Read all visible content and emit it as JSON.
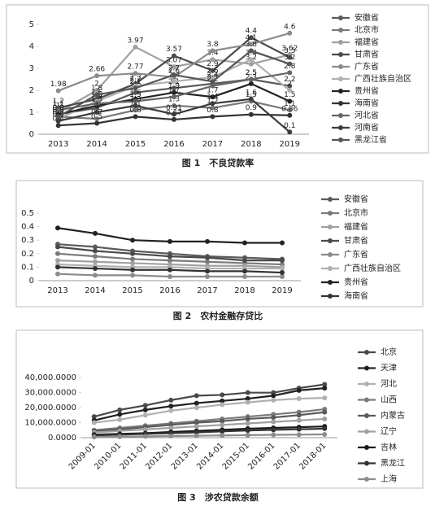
{
  "chart_data": [
    {
      "type": "line",
      "title": "图 1　不良贷款率",
      "data_labels": true,
      "categories": [
        "2013",
        "2014",
        "2015",
        "2016",
        "2017",
        "2018",
        "2019"
      ],
      "ylim": [
        0,
        5
      ],
      "yticks": [
        0,
        1,
        2,
        3,
        4,
        5
      ],
      "series": [
        {
          "name": "安徽省",
          "color": "#5a5a5a",
          "values": [
            0.9,
            1.2,
            1.9,
            2.1,
            2.3,
            2.5,
            2.2
          ]
        },
        {
          "name": "北京市",
          "color": "#7a7a7a",
          "values": [
            0.8,
            0.7,
            1.1,
            1.3,
            1.2,
            1.5,
            1.1
          ]
        },
        {
          "name": "福建省",
          "color": "#a0a0a0",
          "values": [
            1.0,
            2.0,
            3.97,
            3.07,
            3.4,
            3.2,
            3.62
          ]
        },
        {
          "name": "甘肃省",
          "color": "#4a4a4a",
          "values": [
            1.2,
            1.6,
            2.3,
            3.57,
            2.9,
            4.4,
            3.5
          ]
        },
        {
          "name": "广东省",
          "color": "#8c8c8c",
          "values": [
            1.98,
            2.66,
            2.77,
            2.6,
            3.8,
            4.1,
            4.6
          ]
        },
        {
          "name": "广西壮族自治区",
          "color": "#b0b0b0",
          "values": [
            0.7,
            1.5,
            2.2,
            2.4,
            2.6,
            3.4,
            2.0
          ]
        },
        {
          "name": "贵州省",
          "color": "#222222",
          "values": [
            0.9,
            1.3,
            1.6,
            1.9,
            1.7,
            2.3,
            1.5
          ]
        },
        {
          "name": "海南省",
          "color": "#333333",
          "values": [
            0.4,
            0.5,
            0.8,
            0.67,
            0.8,
            0.9,
            0.86
          ]
        },
        {
          "name": "河北省",
          "color": "#666666",
          "values": [
            1.1,
            1.4,
            1.5,
            1.7,
            2.2,
            2.5,
            2.8
          ]
        },
        {
          "name": "河南省",
          "color": "#3c3c3c",
          "values": [
            0.6,
            1.0,
            1.3,
            0.91,
            1.4,
            1.6,
            0.1
          ]
        },
        {
          "name": "黑龙江省",
          "color": "#555555",
          "values": [
            0.8,
            1.8,
            2.1,
            2.7,
            2.4,
            3.8,
            3.2
          ]
        }
      ]
    },
    {
      "type": "line",
      "title": "图 2　农村金融存贷比",
      "categories": [
        "2013",
        "2014",
        "2015",
        "2016",
        "2017",
        "2018",
        "2019"
      ],
      "ylim": [
        0,
        0.5
      ],
      "yticks": [
        0,
        0.1,
        0.2,
        0.3,
        0.4,
        0.5
      ],
      "series": [
        {
          "name": "安徽省",
          "color": "#5a5a5a",
          "values": [
            0.27,
            0.25,
            0.22,
            0.2,
            0.18,
            0.17,
            0.16
          ]
        },
        {
          "name": "北京市",
          "color": "#7a7a7a",
          "values": [
            0.2,
            0.18,
            0.16,
            0.15,
            0.14,
            0.13,
            0.12
          ]
        },
        {
          "name": "福建省",
          "color": "#a0a0a0",
          "values": [
            0.15,
            0.14,
            0.13,
            0.12,
            0.11,
            0.11,
            0.1
          ]
        },
        {
          "name": "甘肃省",
          "color": "#4a4a4a",
          "values": [
            0.25,
            0.22,
            0.2,
            0.18,
            0.17,
            0.15,
            0.15
          ]
        },
        {
          "name": "广东省",
          "color": "#8c8c8c",
          "values": [
            0.05,
            0.04,
            0.04,
            0.03,
            0.03,
            0.03,
            0.03
          ]
        },
        {
          "name": "广西壮族自治区",
          "color": "#b0b0b0",
          "values": [
            0.12,
            0.11,
            0.1,
            0.1,
            0.09,
            0.09,
            0.09
          ]
        },
        {
          "name": "贵州省",
          "color": "#222222",
          "values": [
            0.39,
            0.35,
            0.3,
            0.29,
            0.29,
            0.28,
            0.28
          ]
        },
        {
          "name": "海南省",
          "color": "#333333",
          "values": [
            0.1,
            0.09,
            0.08,
            0.08,
            0.07,
            0.07,
            0.06
          ]
        }
      ]
    },
    {
      "type": "line",
      "title": "图 3　涉农贷款余额",
      "rotate_x_labels": true,
      "categories": [
        "2009-01",
        "2010-01",
        "2011-01",
        "2012-01",
        "2013-01",
        "2014-01",
        "2015-01",
        "2016-01",
        "2017-01",
        "2018-01"
      ],
      "ylim": [
        0,
        45000
      ],
      "yticks": [
        {
          "value": 0,
          "label": "0.0000"
        },
        {
          "value": 10000,
          "label": "10,000.0000"
        },
        {
          "value": 20000,
          "label": "20,000.0000"
        },
        {
          "value": 30000,
          "label": "30,000.0000"
        },
        {
          "value": 40000,
          "label": "40,000.0000"
        }
      ],
      "series": [
        {
          "name": "北京",
          "color": "#4a4a4a",
          "values": [
            14000,
            18500,
            21500,
            25000,
            28000,
            28500,
            30000,
            30000,
            33000,
            35500
          ]
        },
        {
          "name": "天津",
          "color": "#222222",
          "values": [
            11500,
            15500,
            18500,
            21000,
            23000,
            24500,
            26000,
            28000,
            31500,
            33000
          ]
        },
        {
          "name": "河北",
          "color": "#b0b0b0",
          "values": [
            10000,
            12000,
            15000,
            18000,
            20000,
            22000,
            23500,
            25000,
            26000,
            26500
          ]
        },
        {
          "name": "山西",
          "color": "#7a7a7a",
          "values": [
            5000,
            6500,
            8000,
            9500,
            11000,
            12500,
            14000,
            15500,
            17000,
            19000
          ]
        },
        {
          "name": "内蒙古",
          "color": "#5a5a5a",
          "values": [
            4500,
            5500,
            7000,
            8500,
            10000,
            11000,
            12500,
            13500,
            15000,
            17000
          ]
        },
        {
          "name": "辽宁",
          "color": "#a0a0a0",
          "values": [
            3500,
            4500,
            5500,
            6500,
            7500,
            8500,
            9500,
            10500,
            11500,
            12500
          ]
        },
        {
          "name": "吉林",
          "color": "#1a1a1a",
          "values": [
            2000,
            2500,
            3000,
            3800,
            4500,
            5200,
            6000,
            6500,
            7000,
            7500
          ]
        },
        {
          "name": "黑龙江",
          "color": "#333333",
          "values": [
            1500,
            2000,
            2500,
            3000,
            3500,
            4200,
            4800,
            5200,
            5600,
            6000
          ]
        },
        {
          "name": "上海",
          "color": "#8c8c8c",
          "values": [
            500,
            700,
            900,
            1100,
            1300,
            1500,
            1700,
            1900,
            2000,
            2200
          ]
        }
      ]
    }
  ]
}
